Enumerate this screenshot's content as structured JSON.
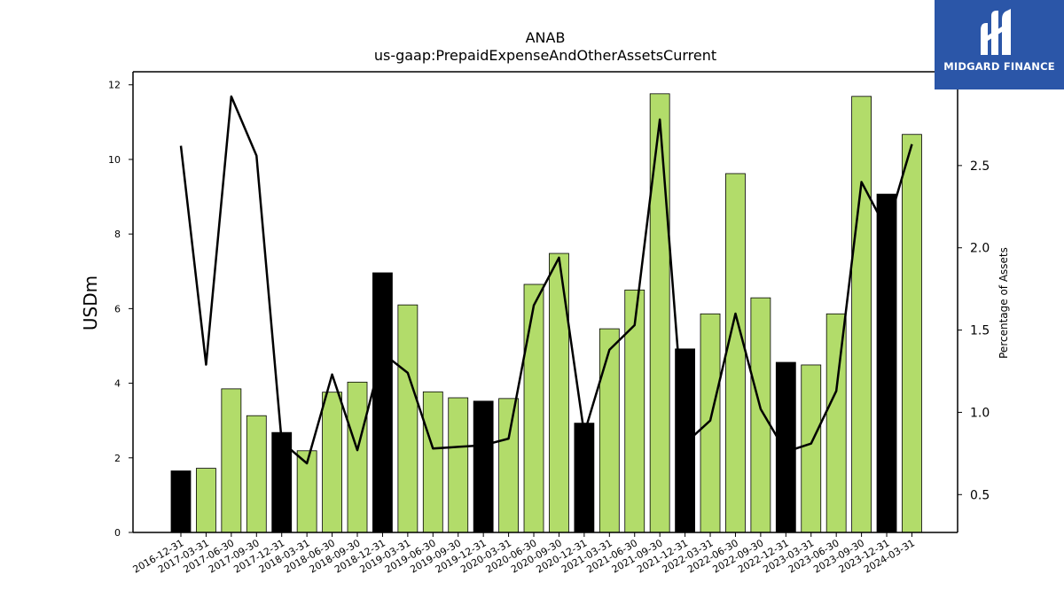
{
  "chart_data": {
    "type": "bar",
    "title": "ANAB",
    "subtitle": "us-gaap:PrepaidExpenseAndOtherAssetsCurrent",
    "ylabel": "USDm",
    "y2label": "Percentage of Assets",
    "ylim": [
      0,
      12.35
    ],
    "y2lim": [
      0.27,
      3.07
    ],
    "yticks": [
      "0",
      "2",
      "4",
      "6",
      "8",
      "10",
      "12"
    ],
    "y2ticks": [
      "0.5",
      "1.0",
      "1.5",
      "2.0",
      "2.5"
    ],
    "categories": [
      "2016-12-31",
      "2017-03-31",
      "2017-06-30",
      "2017-09-30",
      "2017-12-31",
      "2018-03-31",
      "2018-06-30",
      "2018-09-30",
      "2018-12-31",
      "2019-03-31",
      "2019-06-30",
      "2019-09-30",
      "2019-12-31",
      "2020-03-31",
      "2020-06-30",
      "2020-09-30",
      "2020-12-31",
      "2021-03-31",
      "2021-06-30",
      "2021-09-30",
      "2021-12-31",
      "2022-03-31",
      "2022-06-30",
      "2022-09-30",
      "2022-12-31",
      "2023-03-31",
      "2023-06-30",
      "2023-09-30",
      "2023-12-31",
      "2024-03-31"
    ],
    "series": [
      {
        "kind": "bar",
        "values": [
          1.65,
          1.72,
          3.85,
          3.13,
          2.68,
          2.19,
          3.76,
          4.03,
          6.96,
          6.1,
          3.77,
          3.61,
          3.52,
          3.59,
          6.65,
          7.48,
          2.93,
          5.46,
          6.5,
          11.76,
          4.92,
          5.86,
          9.62,
          6.29,
          4.56,
          4.49,
          5.86,
          11.69,
          9.07,
          10.67
        ],
        "colors": [
          "#000000",
          "#b2dc6a",
          "#b2dc6a",
          "#b2dc6a",
          "#000000",
          "#b2dc6a",
          "#b2dc6a",
          "#b2dc6a",
          "#000000",
          "#b2dc6a",
          "#b2dc6a",
          "#b2dc6a",
          "#000000",
          "#b2dc6a",
          "#b2dc6a",
          "#b2dc6a",
          "#000000",
          "#b2dc6a",
          "#b2dc6a",
          "#b2dc6a",
          "#000000",
          "#b2dc6a",
          "#b2dc6a",
          "#b2dc6a",
          "#000000",
          "#b2dc6a",
          "#b2dc6a",
          "#b2dc6a",
          "#000000",
          "#b2dc6a"
        ]
      },
      {
        "kind": "line",
        "axis": "right",
        "color": "#000000",
        "values": [
          2.62,
          1.29,
          2.92,
          2.56,
          0.82,
          0.69,
          1.23,
          0.77,
          1.36,
          1.24,
          0.78,
          0.79,
          0.8,
          0.84,
          1.65,
          1.94,
          0.87,
          1.38,
          1.53,
          2.78,
          0.81,
          0.95,
          1.6,
          1.02,
          0.76,
          0.81,
          1.13,
          2.4,
          2.11,
          2.63
        ]
      }
    ],
    "grid": false,
    "legend": "none"
  },
  "logo": {
    "text": "MIDGARD FINANCE",
    "background": "#2b56a8"
  }
}
